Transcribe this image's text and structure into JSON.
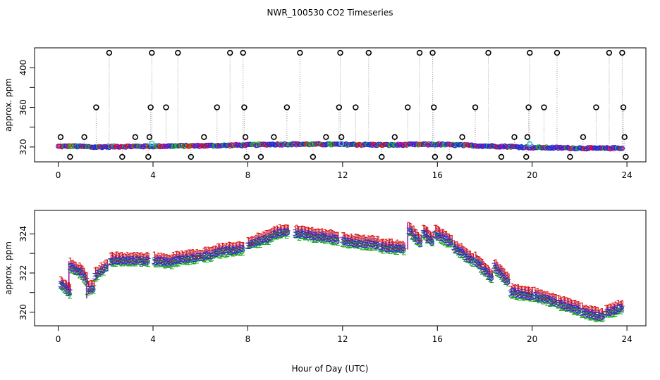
{
  "title": "NWR_100530  CO2 Timeseries",
  "xlabel": "Hour of Day (UTC)",
  "colors": {
    "axis": "#000000",
    "pt_blue": "#1f2fd6",
    "pt_green": "#22aa22",
    "pt_red": "#dd1111",
    "pt_purple": "#aa00aa",
    "pt_cyan": "#33cccc",
    "raw": "#000000",
    "vline": "#999999"
  },
  "chart_data": [
    {
      "type": "scatter",
      "ylabel": "approx. ppm",
      "xlim": [
        -1,
        24.8
      ],
      "ylim": [
        305,
        420
      ],
      "x_ticks": [
        0,
        4,
        8,
        12,
        16,
        20,
        24
      ],
      "x_tick_labels": [
        "0",
        "4",
        "8",
        "12",
        "16",
        "20",
        "24"
      ],
      "y_ticks": [
        320,
        340,
        360,
        380,
        400
      ],
      "y_tick_labels": [
        "320",
        "",
        "360",
        "",
        "400"
      ],
      "baseline": [
        [
          0,
          320.5
        ],
        [
          0.5,
          320.8
        ],
        [
          1.0,
          320.5
        ],
        [
          1.5,
          319.8
        ],
        [
          2.0,
          320.2
        ],
        [
          3.0,
          320.6
        ],
        [
          4.0,
          320.7
        ],
        [
          5.0,
          321.0
        ],
        [
          6.0,
          321.2
        ],
        [
          7.0,
          321.6
        ],
        [
          8.0,
          322.0
        ],
        [
          9.0,
          322.6
        ],
        [
          10.0,
          322.8
        ],
        [
          11.0,
          322.7
        ],
        [
          12.0,
          322.5
        ],
        [
          13.0,
          322.3
        ],
        [
          14.0,
          322.0
        ],
        [
          15.0,
          322.4
        ],
        [
          16.0,
          322.6
        ],
        [
          17.0,
          321.8
        ],
        [
          18.0,
          321.0
        ],
        [
          19.0,
          320.4
        ],
        [
          20.0,
          319.5
        ],
        [
          21.0,
          319.2
        ],
        [
          22.0,
          318.8
        ],
        [
          23.0,
          318.6
        ],
        [
          23.8,
          319.0
        ]
      ],
      "calibration_spikes": [
        {
          "x": 0.1,
          "y": 330
        },
        {
          "x": 0.5,
          "y": 310
        },
        {
          "x": 1.1,
          "y": 330
        },
        {
          "x": 1.6,
          "y": 360
        },
        {
          "x": 2.15,
          "y": 415
        },
        {
          "x": 2.7,
          "y": 310
        },
        {
          "x": 3.25,
          "y": 330
        },
        {
          "x": 3.8,
          "y": 310
        },
        {
          "x": 3.85,
          "y": 330
        },
        {
          "x": 3.9,
          "y": 360
        },
        {
          "x": 3.95,
          "y": 415
        },
        {
          "x": 4.55,
          "y": 360
        },
        {
          "x": 5.05,
          "y": 415
        },
        {
          "x": 5.6,
          "y": 310
        },
        {
          "x": 6.15,
          "y": 330
        },
        {
          "x": 6.7,
          "y": 360
        },
        {
          "x": 7.25,
          "y": 415
        },
        {
          "x": 7.8,
          "y": 415
        },
        {
          "x": 7.85,
          "y": 360
        },
        {
          "x": 7.9,
          "y": 330
        },
        {
          "x": 7.95,
          "y": 310
        },
        {
          "x": 8.55,
          "y": 310
        },
        {
          "x": 9.1,
          "y": 330
        },
        {
          "x": 9.65,
          "y": 360
        },
        {
          "x": 10.2,
          "y": 415
        },
        {
          "x": 10.75,
          "y": 310
        },
        {
          "x": 11.3,
          "y": 330
        },
        {
          "x": 11.85,
          "y": 360
        },
        {
          "x": 11.9,
          "y": 415
        },
        {
          "x": 11.95,
          "y": 330
        },
        {
          "x": 12.55,
          "y": 360
        },
        {
          "x": 13.1,
          "y": 415
        },
        {
          "x": 13.65,
          "y": 310
        },
        {
          "x": 14.2,
          "y": 330
        },
        {
          "x": 14.75,
          "y": 360
        },
        {
          "x": 15.25,
          "y": 415
        },
        {
          "x": 15.8,
          "y": 415
        },
        {
          "x": 15.85,
          "y": 360
        },
        {
          "x": 15.9,
          "y": 310
        },
        {
          "x": 16.5,
          "y": 310
        },
        {
          "x": 17.05,
          "y": 330
        },
        {
          "x": 17.6,
          "y": 360
        },
        {
          "x": 18.15,
          "y": 415
        },
        {
          "x": 18.7,
          "y": 310
        },
        {
          "x": 19.25,
          "y": 330
        },
        {
          "x": 19.75,
          "y": 310
        },
        {
          "x": 19.8,
          "y": 330
        },
        {
          "x": 19.85,
          "y": 360
        },
        {
          "x": 19.9,
          "y": 415
        },
        {
          "x": 20.5,
          "y": 360
        },
        {
          "x": 21.05,
          "y": 415
        },
        {
          "x": 21.6,
          "y": 310
        },
        {
          "x": 22.15,
          "y": 330
        },
        {
          "x": 22.7,
          "y": 360
        },
        {
          "x": 23.25,
          "y": 415
        },
        {
          "x": 23.8,
          "y": 415
        },
        {
          "x": 23.85,
          "y": 360
        },
        {
          "x": 23.9,
          "y": 330
        },
        {
          "x": 23.95,
          "y": 310
        }
      ],
      "cyan_points": [
        [
          3.95,
          323.5
        ],
        [
          11.95,
          323.5
        ],
        [
          19.9,
          323.0
        ]
      ]
    },
    {
      "type": "scatter",
      "ylabel": "approx. ppm",
      "xlim": [
        -1,
        24.8
      ],
      "ylim": [
        319.3,
        325.2
      ],
      "x_ticks": [
        0,
        4,
        8,
        12,
        16,
        20,
        24
      ],
      "x_tick_labels": [
        "0",
        "4",
        "8",
        "12",
        "16",
        "20",
        "24"
      ],
      "y_ticks": [
        320,
        321,
        322,
        323,
        324
      ],
      "y_tick_labels": [
        "320",
        "",
        "322",
        "",
        "324"
      ],
      "point_symbols": [
        "1",
        "2",
        "3"
      ],
      "segments": [
        {
          "x0": 0.1,
          "x1": 0.5,
          "y0": 321.4,
          "y1": 321.0
        },
        {
          "x0": 0.5,
          "x1": 0.9,
          "y0": 322.3,
          "y1": 322.0
        },
        {
          "x0": 0.9,
          "x1": 1.2,
          "y0": 322.1,
          "y1": 321.6
        },
        {
          "x0": 1.25,
          "x1": 1.5,
          "y0": 321.1,
          "y1": 321.2
        },
        {
          "x0": 1.55,
          "x1": 2.05,
          "y0": 321.8,
          "y1": 322.3
        },
        {
          "x0": 2.2,
          "x1": 3.8,
          "y0": 322.6,
          "y1": 322.6
        },
        {
          "x0": 4.05,
          "x1": 4.8,
          "y0": 322.6,
          "y1": 322.5
        },
        {
          "x0": 4.85,
          "x1": 6.5,
          "y0": 322.6,
          "y1": 322.9
        },
        {
          "x0": 6.55,
          "x1": 7.8,
          "y0": 323.0,
          "y1": 323.2
        },
        {
          "x0": 8.0,
          "x1": 9.0,
          "y0": 323.4,
          "y1": 323.8
        },
        {
          "x0": 9.05,
          "x1": 9.7,
          "y0": 323.9,
          "y1": 324.1
        },
        {
          "x0": 10.0,
          "x1": 11.8,
          "y0": 324.0,
          "y1": 323.7
        },
        {
          "x0": 12.0,
          "x1": 13.5,
          "y0": 323.6,
          "y1": 323.4
        },
        {
          "x0": 13.6,
          "x1": 14.6,
          "y0": 323.3,
          "y1": 323.2
        },
        {
          "x0": 14.8,
          "x1": 15.3,
          "y0": 324.2,
          "y1": 323.5
        },
        {
          "x0": 15.4,
          "x1": 15.8,
          "y0": 324.0,
          "y1": 323.6
        },
        {
          "x0": 15.9,
          "x1": 16.6,
          "y0": 324.0,
          "y1": 323.5
        },
        {
          "x0": 16.7,
          "x1": 17.5,
          "y0": 323.3,
          "y1": 322.6
        },
        {
          "x0": 17.6,
          "x1": 18.3,
          "y0": 322.6,
          "y1": 321.7
        },
        {
          "x0": 18.4,
          "x1": 19.0,
          "y0": 322.3,
          "y1": 321.5
        },
        {
          "x0": 19.1,
          "x1": 20.0,
          "y0": 321.0,
          "y1": 320.8
        },
        {
          "x0": 20.1,
          "x1": 21.0,
          "y0": 320.8,
          "y1": 320.5
        },
        {
          "x0": 21.1,
          "x1": 22.0,
          "y0": 320.4,
          "y1": 320.1
        },
        {
          "x0": 22.1,
          "x1": 23.0,
          "y0": 320.0,
          "y1": 319.7
        },
        {
          "x0": 23.1,
          "x1": 23.8,
          "y0": 319.9,
          "y1": 320.2
        }
      ],
      "spikes": [
        {
          "x": 0.45,
          "y0": 321.0,
          "y1": 322.6
        },
        {
          "x": 1.2,
          "y0": 321.6,
          "y1": 320.7
        },
        {
          "x": 14.75,
          "y0": 323.2,
          "y1": 324.6
        },
        {
          "x": 15.55,
          "y0": 323.5,
          "y1": 324.4
        }
      ]
    }
  ]
}
